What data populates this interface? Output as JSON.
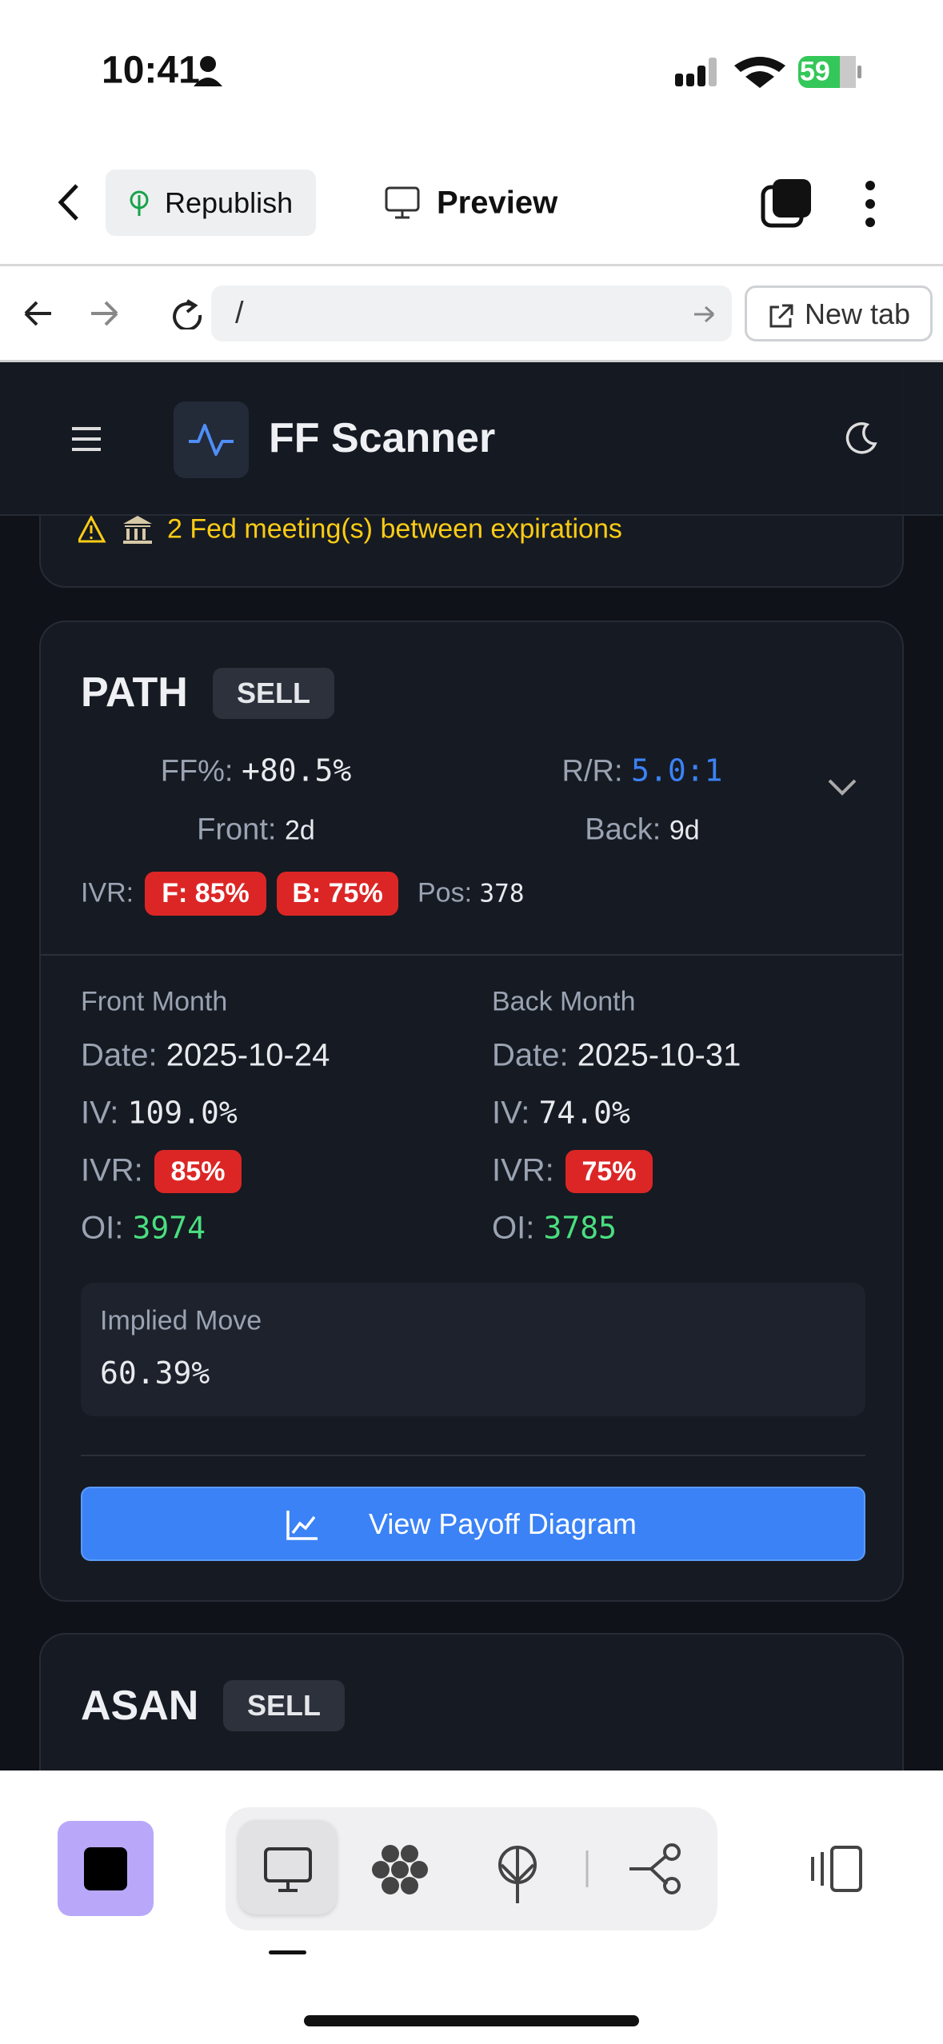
{
  "status_bar": {
    "time": "10:41",
    "battery": "59"
  },
  "toolbar": {
    "republish": "Republish",
    "preview": "Preview"
  },
  "address_bar": {
    "url": "/",
    "new_tab": "New tab"
  },
  "app_header": {
    "title": "FF Scanner"
  },
  "alert": {
    "text": "2 Fed meeting(s) between expirations"
  },
  "cards": [
    {
      "ticker": "PATH",
      "action": "SELL",
      "ff_label": "FF%:",
      "ff_value": "+80.5%",
      "rr_label": "R/R:",
      "rr_value": "5.0:1",
      "front_label": "Front:",
      "front_value": "2d",
      "back_label": "Back:",
      "back_value": "9d",
      "ivr_label": "IVR:",
      "ivr_front": "F: 85%",
      "ivr_back": "B: 75%",
      "pos_label": "Pos:",
      "pos_value": "378",
      "front_month": {
        "title": "Front Month",
        "date_label": "Date:",
        "date": "2025-10-24",
        "iv_label": "IV:",
        "iv": "109.0%",
        "ivr_label": "IVR:",
        "ivr": "85%",
        "oi_label": "OI:",
        "oi": "3974"
      },
      "back_month": {
        "title": "Back Month",
        "date_label": "Date:",
        "date": "2025-10-31",
        "iv_label": "IV:",
        "iv": "74.0%",
        "ivr_label": "IVR:",
        "ivr": "75%",
        "oi_label": "OI:",
        "oi": "3785"
      },
      "implied_move": {
        "label": "Implied Move",
        "value": "60.39%"
      },
      "button": "View Payoff Diagram"
    },
    {
      "ticker": "ASAN",
      "action": "SELL"
    }
  ]
}
